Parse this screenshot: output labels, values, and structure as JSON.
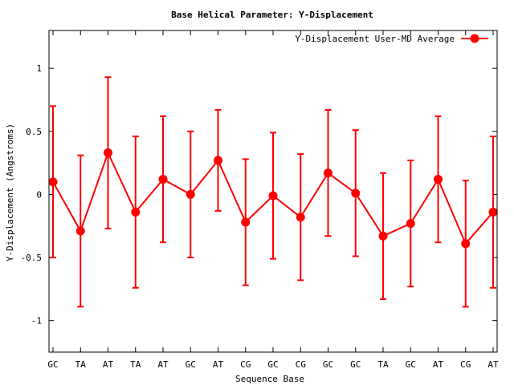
{
  "chart_data": {
    "type": "line",
    "title": "Base  Helical Parameter: Y-Displacement",
    "xlabel": "Sequence Base",
    "ylabel": "Y-Displacement (Angstroms)",
    "ylim": [
      -1.25,
      1.3
    ],
    "yticks": [
      -1,
      -0.5,
      0,
      0.5,
      1
    ],
    "ytick_labels": [
      "-1",
      "-0.5",
      "0",
      "0.5",
      "1"
    ],
    "grid": false,
    "legend_position": "top-right",
    "categories": [
      "GC",
      "TA",
      "AT",
      "TA",
      "AT",
      "GC",
      "AT",
      "CG",
      "GC",
      "CG",
      "GC",
      "GC",
      "TA",
      "GC",
      "AT",
      "CG",
      "AT"
    ],
    "series": [
      {
        "name": "Y-Displacement User-MD Average",
        "color": "#ff0000",
        "values": [
          0.1,
          -0.29,
          0.33,
          -0.14,
          0.12,
          0.0,
          0.27,
          -0.22,
          -0.01,
          -0.18,
          0.17,
          0.01,
          -0.33,
          -0.23,
          0.12,
          -0.39,
          -0.14
        ],
        "error_low": [
          -0.5,
          -0.89,
          -0.27,
          -0.74,
          -0.38,
          -0.5,
          -0.13,
          -0.72,
          -0.51,
          -0.68,
          -0.33,
          -0.49,
          -0.83,
          -0.73,
          -0.38,
          -0.89,
          -0.74
        ],
        "error_high": [
          0.7,
          0.31,
          0.93,
          0.46,
          0.62,
          0.5,
          0.67,
          0.28,
          0.49,
          0.32,
          0.67,
          0.51,
          0.17,
          0.27,
          0.62,
          0.11,
          0.46
        ]
      }
    ]
  }
}
